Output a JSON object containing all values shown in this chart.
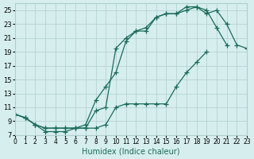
{
  "xlabel": "Humidex (Indice chaleur)",
  "bg_color": "#d6eeee",
  "grid_color": "#b0cece",
  "line_color": "#1a6b5a",
  "marker": "+",
  "xlim": [
    0,
    23
  ],
  "ylim": [
    7,
    26
  ],
  "xticks": [
    0,
    1,
    2,
    3,
    4,
    5,
    6,
    7,
    8,
    9,
    10,
    11,
    12,
    13,
    14,
    15,
    16,
    17,
    18,
    19,
    20,
    21,
    22,
    23
  ],
  "yticks": [
    7,
    9,
    11,
    13,
    15,
    17,
    19,
    21,
    23,
    25
  ],
  "line1_x": [
    0,
    1,
    2,
    3,
    4,
    5,
    6,
    7,
    8,
    9,
    10,
    11,
    12,
    13,
    14,
    15,
    16,
    17,
    18,
    19,
    20,
    21
  ],
  "line1_y": [
    10,
    9.5,
    8.5,
    7.5,
    7.5,
    7.5,
    8,
    8,
    10.5,
    11,
    19.5,
    21,
    22,
    22.5,
    24,
    24.5,
    24.5,
    25.5,
    25.5,
    25,
    22.5,
    20
  ],
  "line2_x": [
    0,
    1,
    2,
    3,
    4,
    5,
    6,
    7,
    8,
    9,
    10,
    11,
    12,
    13,
    14,
    15,
    16,
    17,
    18,
    19,
    20,
    21,
    22,
    23
  ],
  "line2_y": [
    10,
    9.5,
    8.5,
    8,
    8,
    8,
    8,
    8.5,
    12,
    14,
    16,
    20.5,
    22,
    22,
    24,
    24.5,
    24.5,
    25,
    25.5,
    24.5,
    25,
    23,
    20,
    19.5
  ],
  "line3_x": [
    0,
    1,
    2,
    3,
    4,
    5,
    6,
    7,
    8,
    9,
    10,
    11,
    12,
    13,
    14,
    15,
    16,
    17,
    18,
    19
  ],
  "line3_y": [
    10,
    9.5,
    8.5,
    8,
    8,
    8,
    8,
    8,
    8,
    8.5,
    11,
    11.5,
    11.5,
    11.5,
    11.5,
    11.5,
    14,
    16,
    17.5,
    19
  ]
}
